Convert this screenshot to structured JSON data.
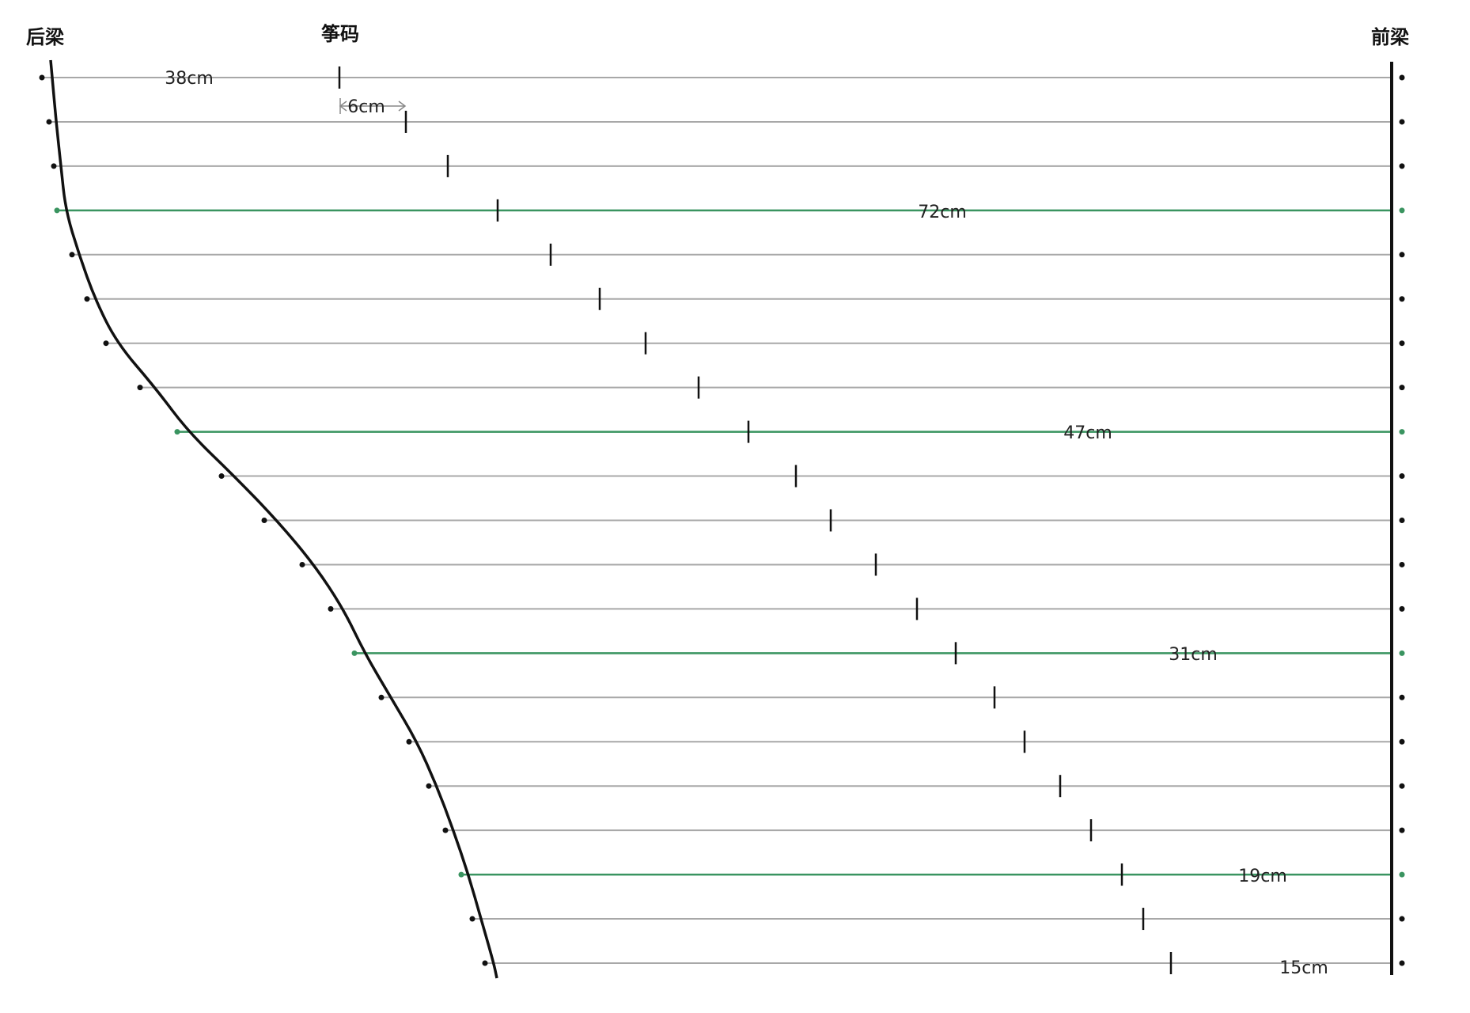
{
  "titles": {
    "rear_bridge": "后梁",
    "bridges": "筝码",
    "front_bridge": "前梁"
  },
  "labels": {
    "first_string_length": "38cm",
    "bridge_spacing": "6cm",
    "string_4_length": "72cm",
    "string_9_length": "47cm",
    "string_14_length": "31cm",
    "string_19_length": "19cm",
    "last_string_length": "15cm"
  },
  "highlighted_strings": [
    4,
    9,
    14,
    19
  ],
  "colors": {
    "string": "#a8a8a8",
    "highlight": "#3a9460",
    "ink": "#111111"
  }
}
